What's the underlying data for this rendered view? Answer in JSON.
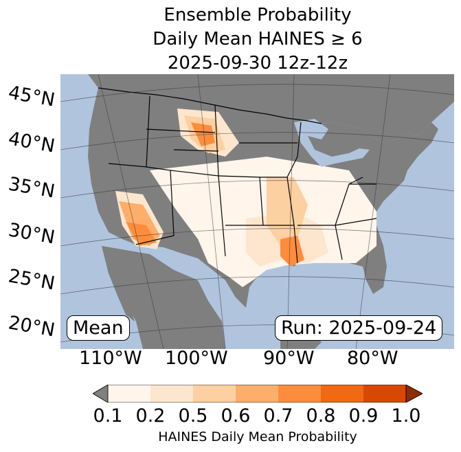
{
  "title": {
    "line1": "Ensemble Probability",
    "line2": "Daily Mean HAINES ≥ 6",
    "line3": "2025-09-30 12z-12z"
  },
  "map": {
    "lat_labels": [
      "45°N",
      "40°N",
      "35°N",
      "30°N",
      "25°N",
      "20°N"
    ],
    "lon_labels": [
      "110°W",
      "100°W",
      "90°W",
      "80°W"
    ],
    "ocean_color": "#b0c4de",
    "land_missing_color": "#7f7f7f"
  },
  "annotations": {
    "stat": "Mean",
    "run": "Run: 2025-09-24"
  },
  "colorbar": {
    "ticks": [
      "0.1",
      "0.2",
      "0.5",
      "0.6",
      "0.7",
      "0.8",
      "0.9",
      "1.0"
    ],
    "colors": [
      "#fff5eb",
      "#fee6ce",
      "#fdd0a2",
      "#fdae6b",
      "#fd8d3c",
      "#f16913",
      "#d94801"
    ],
    "under_color": "#7f7f7f",
    "over_color": "#8c2d04",
    "label": "HAINES Daily Mean Probability"
  }
}
